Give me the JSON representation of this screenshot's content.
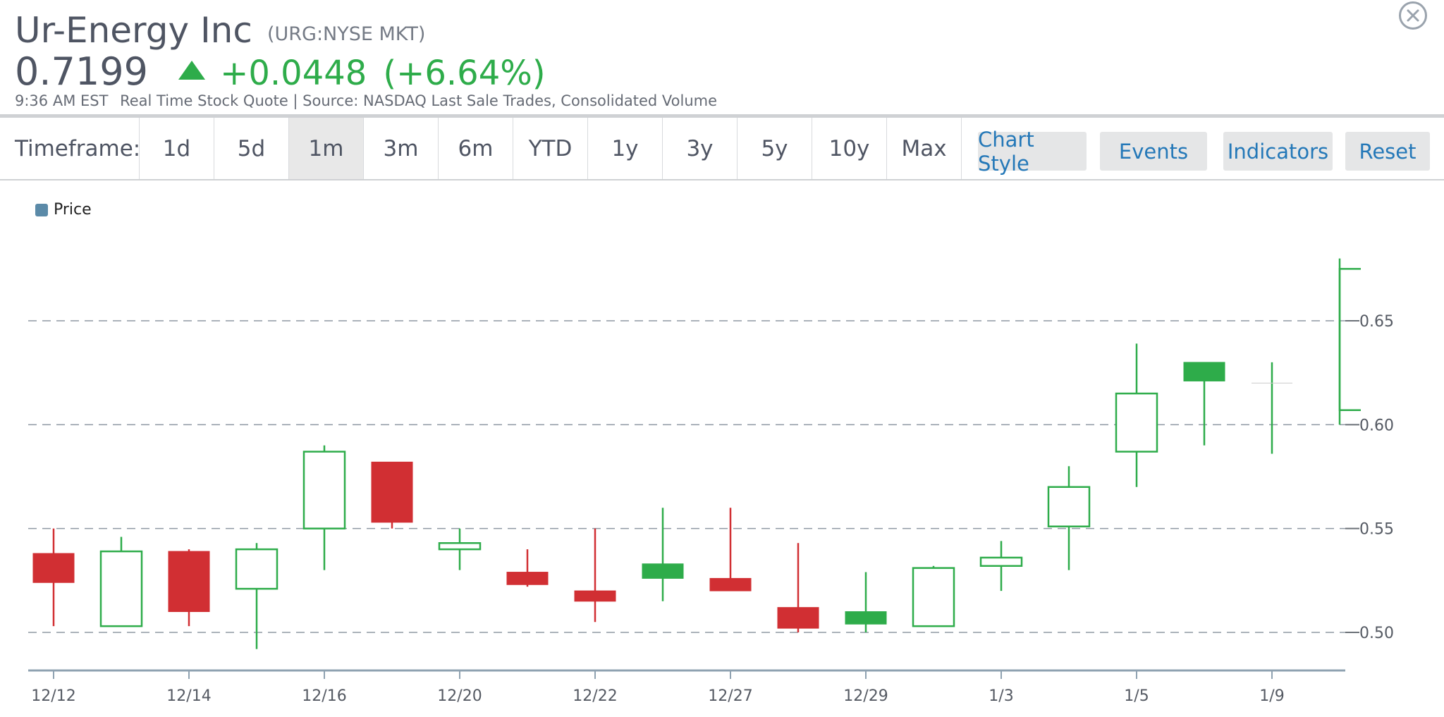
{
  "header": {
    "company_name": "Ur-Energy Inc",
    "ticker": "(URG:NYSE MKT)",
    "price": "0.7199",
    "change": "+0.0448",
    "change_pct": "(+6.64%)",
    "time": "9:36 AM EST",
    "source": "Real Time Stock Quote | Source: NASDAQ Last Sale Trades, Consolidated Volume",
    "up_color": "#2eac4a"
  },
  "toolbar": {
    "timeframe_label": "Timeframe:",
    "timeframes": [
      "1d",
      "5d",
      "1m",
      "3m",
      "6m",
      "YTD",
      "1y",
      "3y",
      "5y",
      "10y",
      "Max"
    ],
    "active_timeframe": "1m",
    "chart_style_label": "Chart Style",
    "events_label": "Events",
    "indicators_label": "Indicators",
    "reset_label": "Reset"
  },
  "icons": {
    "close": "close-icon",
    "up_arrow": "triangle-up-icon"
  },
  "chart_data": {
    "type": "candlestick",
    "legend": [
      "Price"
    ],
    "legend_placement": "top-left",
    "x_tick_labels": [
      "12/12",
      "12/14",
      "12/16",
      "12/20",
      "12/22",
      "12/27",
      "12/29",
      "1/3",
      "1/5",
      "1/9"
    ],
    "y_ticks": [
      0.5,
      0.55,
      0.6,
      0.65
    ],
    "ylim": [
      0.482,
      0.685
    ],
    "grid": true,
    "up_color": "#2eac4a",
    "down_color": "#d12f33",
    "candles": [
      {
        "open": 0.538,
        "high": 0.55,
        "low": 0.503,
        "close": 0.524
      },
      {
        "open": 0.503,
        "high": 0.546,
        "low": 0.503,
        "close": 0.539
      },
      {
        "open": 0.539,
        "high": 0.54,
        "low": 0.503,
        "close": 0.51
      },
      {
        "open": 0.521,
        "high": 0.543,
        "low": 0.492,
        "close": 0.54
      },
      {
        "open": 0.55,
        "high": 0.59,
        "low": 0.53,
        "close": 0.587
      },
      {
        "open": 0.582,
        "high": 0.582,
        "low": 0.55,
        "close": 0.553
      },
      {
        "open": 0.54,
        "high": 0.55,
        "low": 0.53,
        "close": 0.543
      },
      {
        "open": 0.529,
        "high": 0.54,
        "low": 0.522,
        "close": 0.523
      },
      {
        "open": 0.52,
        "high": 0.55,
        "low": 0.505,
        "close": 0.515
      },
      {
        "open": 0.526,
        "high": 0.56,
        "low": 0.515,
        "close": 0.533
      },
      {
        "open": 0.526,
        "high": 0.56,
        "low": 0.52,
        "close": 0.52
      },
      {
        "open": 0.512,
        "high": 0.543,
        "low": 0.5,
        "close": 0.502
      },
      {
        "open": 0.504,
        "high": 0.529,
        "low": 0.5,
        "close": 0.51
      },
      {
        "open": 0.503,
        "high": 0.532,
        "low": 0.503,
        "close": 0.531
      },
      {
        "open": 0.532,
        "high": 0.544,
        "low": 0.52,
        "close": 0.536
      },
      {
        "open": 0.551,
        "high": 0.58,
        "low": 0.53,
        "close": 0.57
      },
      {
        "open": 0.587,
        "high": 0.639,
        "low": 0.57,
        "close": 0.615
      },
      {
        "open": 0.621,
        "high": 0.63,
        "low": 0.59,
        "close": 0.63
      },
      {
        "open": 0.62,
        "high": 0.63,
        "low": 0.586,
        "close": 0.62
      },
      {
        "open": 0.607,
        "high": 0.68,
        "low": 0.6,
        "close": 0.675
      }
    ]
  }
}
